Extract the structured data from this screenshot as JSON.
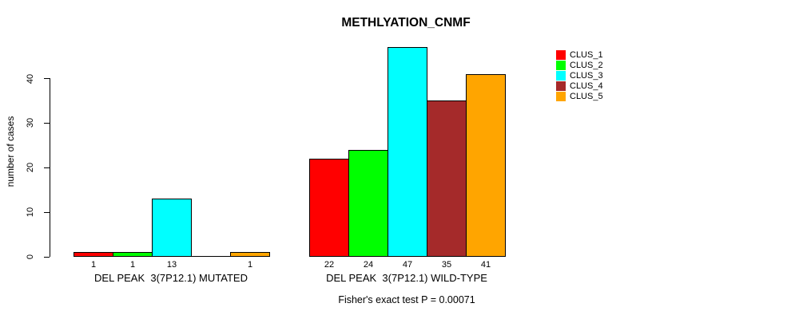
{
  "chart_data": {
    "type": "bar",
    "title": "METHLYATION_CNMF",
    "ylabel": "number of cases",
    "ylim": [
      0,
      40
    ],
    "yticks": [
      0,
      10,
      20,
      30,
      40
    ],
    "grid": false,
    "legend_position": "right",
    "categories": [
      "DEL PEAK  3(7P12.1) MUTATED",
      "DEL PEAK  3(7P12.1) WILD-TYPE"
    ],
    "series": [
      {
        "name": "CLUS_1",
        "color": "#FF0000",
        "values": [
          1,
          22
        ]
      },
      {
        "name": "CLUS_2",
        "color": "#00FF00",
        "values": [
          1,
          24
        ]
      },
      {
        "name": "CLUS_3",
        "color": "#00FFFF",
        "values": [
          13,
          47
        ]
      },
      {
        "name": "CLUS_4",
        "color": "#A52A2A",
        "values": [
          0,
          35
        ]
      },
      {
        "name": "CLUS_5",
        "color": "#FFA500",
        "values": [
          1,
          41
        ]
      }
    ],
    "bar_value_labels": [
      [
        "1",
        "1",
        "13",
        "",
        "1"
      ],
      [
        "22",
        "24",
        "47",
        "35",
        "41"
      ]
    ],
    "footnote": "Fisher's exact test P = 0.00071"
  }
}
